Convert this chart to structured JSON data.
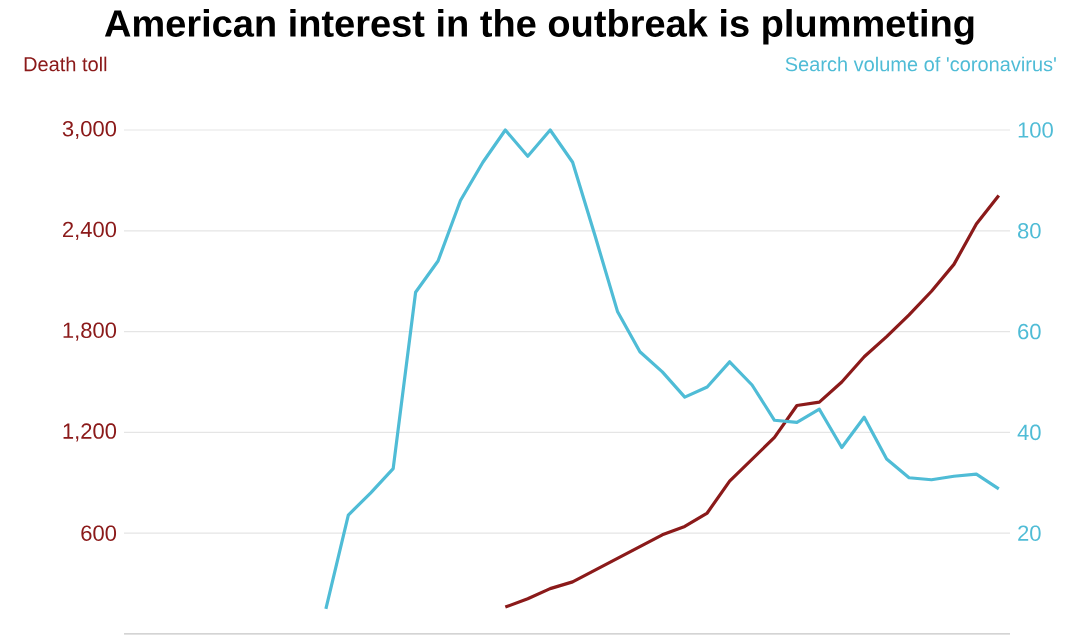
{
  "chart_data": {
    "type": "line",
    "title": "American interest in the outbreak is plummeting",
    "ylabel": "Death toll",
    "y2label": "Search volume of 'coronavirus'",
    "categories": [
      null,
      null,
      null,
      null,
      null,
      null,
      null,
      null,
      null,
      null,
      null,
      null,
      null,
      null,
      null,
      null,
      null,
      null,
      null,
      null,
      null,
      null,
      null,
      null,
      null,
      null,
      null,
      null,
      null,
      null,
      null
    ],
    "series": [
      {
        "color": "#8b1a1a",
        "values": [
          null,
          null,
          null,
          null,
          null,
          null,
          null,
          null,
          160,
          210,
          270,
          310,
          380,
          450,
          520,
          590,
          640,
          720,
          910,
          1040,
          1170,
          1360,
          1380,
          1500,
          1650,
          1770,
          1900,
          2040,
          2200,
          2440,
          2610
        ]
      },
      {
        "color": "#4fbcd6",
        "axis": "y2",
        "values": [
          5,
          23.6,
          28,
          32.8,
          67.8,
          74,
          86,
          93.6,
          100,
          94.8,
          100,
          93.6,
          79,
          64,
          56,
          52,
          47,
          49,
          54,
          49.4,
          42.4,
          42,
          44.6,
          37,
          43,
          34.7,
          31,
          30.6,
          31.3,
          31.7,
          28.8
        ]
      }
    ],
    "ylim": [
      0,
      3000
    ],
    "yticks": [
      600,
      {
        "value": 1200,
        "label": "1,200"
      },
      {
        "value": 1800,
        "label": "1,800"
      },
      {
        "value": 2400,
        "label": "2,400"
      },
      {
        "value": 3000,
        "label": "3,000"
      }
    ],
    "y2lim": [
      0,
      100
    ],
    "y2ticks": [
      20,
      40,
      60,
      80,
      100
    ],
    "grid": "y"
  }
}
